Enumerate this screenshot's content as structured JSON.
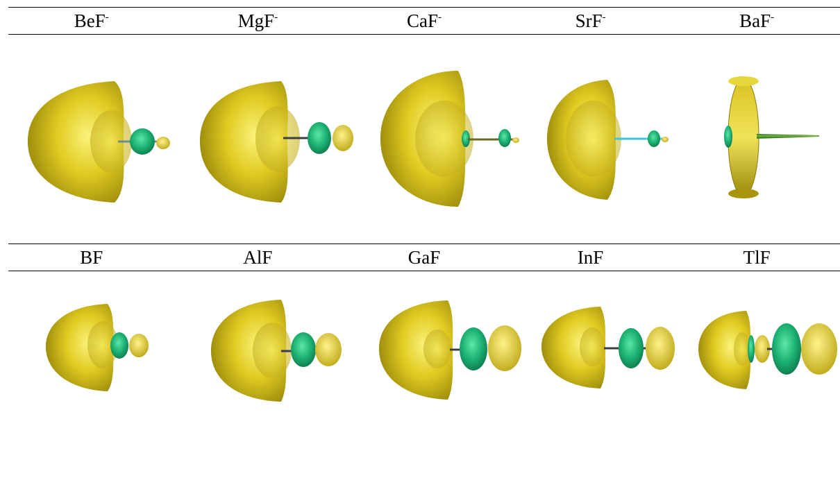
{
  "top_row": {
    "labels": [
      {
        "base": "BeF",
        "sup": "-"
      },
      {
        "base": "MgF",
        "sup": "-"
      },
      {
        "base": "CaF",
        "sup": "-"
      },
      {
        "base": "SrF",
        "sup": "-"
      },
      {
        "base": "BaF",
        "sup": "-"
      }
    ]
  },
  "bottom_row": {
    "labels": [
      {
        "base": "BF",
        "sup": ""
      },
      {
        "base": "AlF",
        "sup": ""
      },
      {
        "base": "GaF",
        "sup": ""
      },
      {
        "base": "InF",
        "sup": ""
      },
      {
        "base": "TlF",
        "sup": ""
      }
    ]
  },
  "colors": {
    "lobe_yellow": "#d9c21c",
    "lobe_green": "#1fb574",
    "bond_teal": "#3cc7d4",
    "rule": "#000000"
  }
}
